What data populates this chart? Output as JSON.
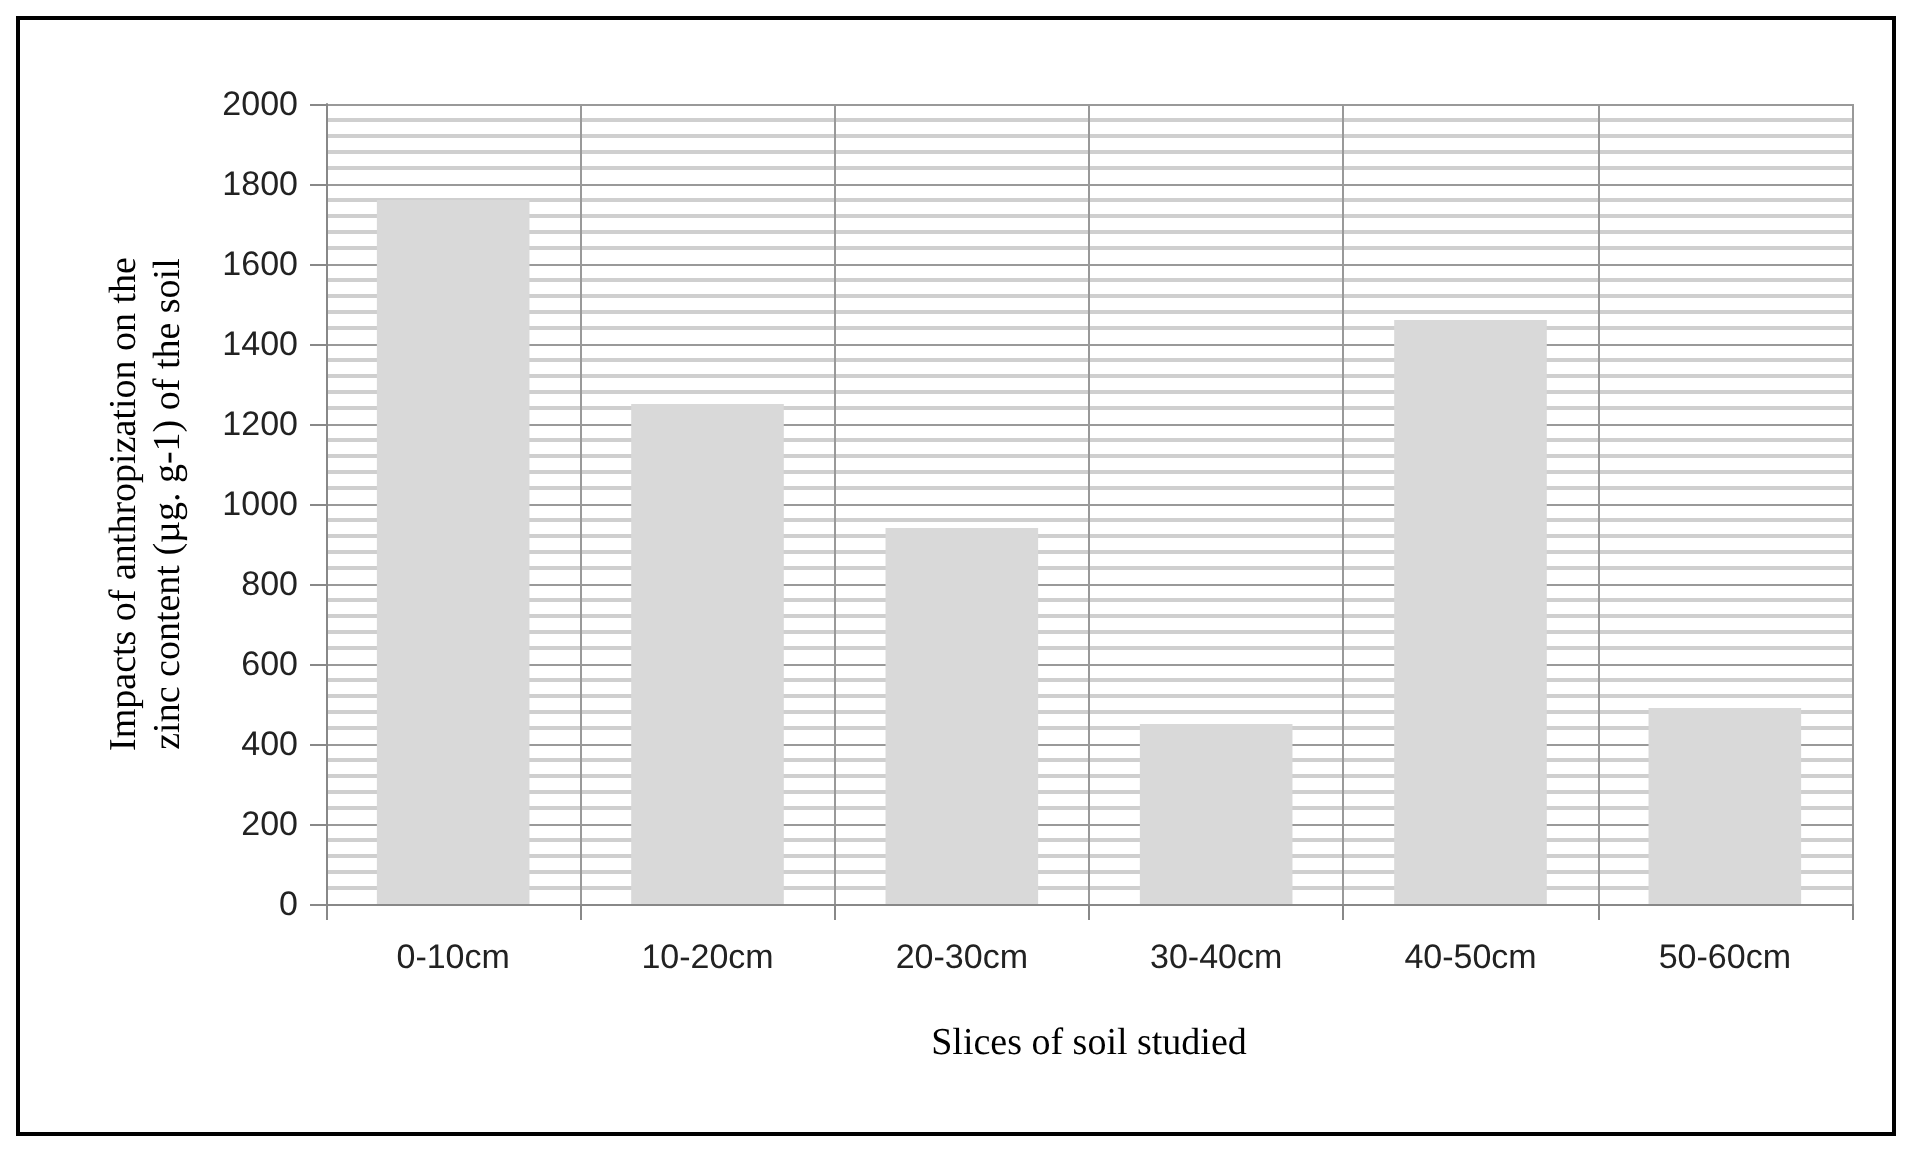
{
  "chart_data": {
    "type": "bar",
    "xlabel": "Slices of soil studied",
    "ylabel": "Impacts of anthropization on the zinc content (µg. g-1) of the soil",
    "categories": [
      "0-10cm",
      "10-20cm",
      "20-30cm",
      "30-40cm",
      "40-50cm",
      "50-60cm"
    ],
    "values": [
      1760,
      1250,
      940,
      450,
      1460,
      490
    ],
    "color": "#d9d9d9",
    "ylim": [
      0,
      2000
    ],
    "yticks": [
      0,
      200,
      400,
      600,
      800,
      1000,
      1200,
      1400,
      1600,
      1800,
      2000
    ],
    "grid": true
  }
}
